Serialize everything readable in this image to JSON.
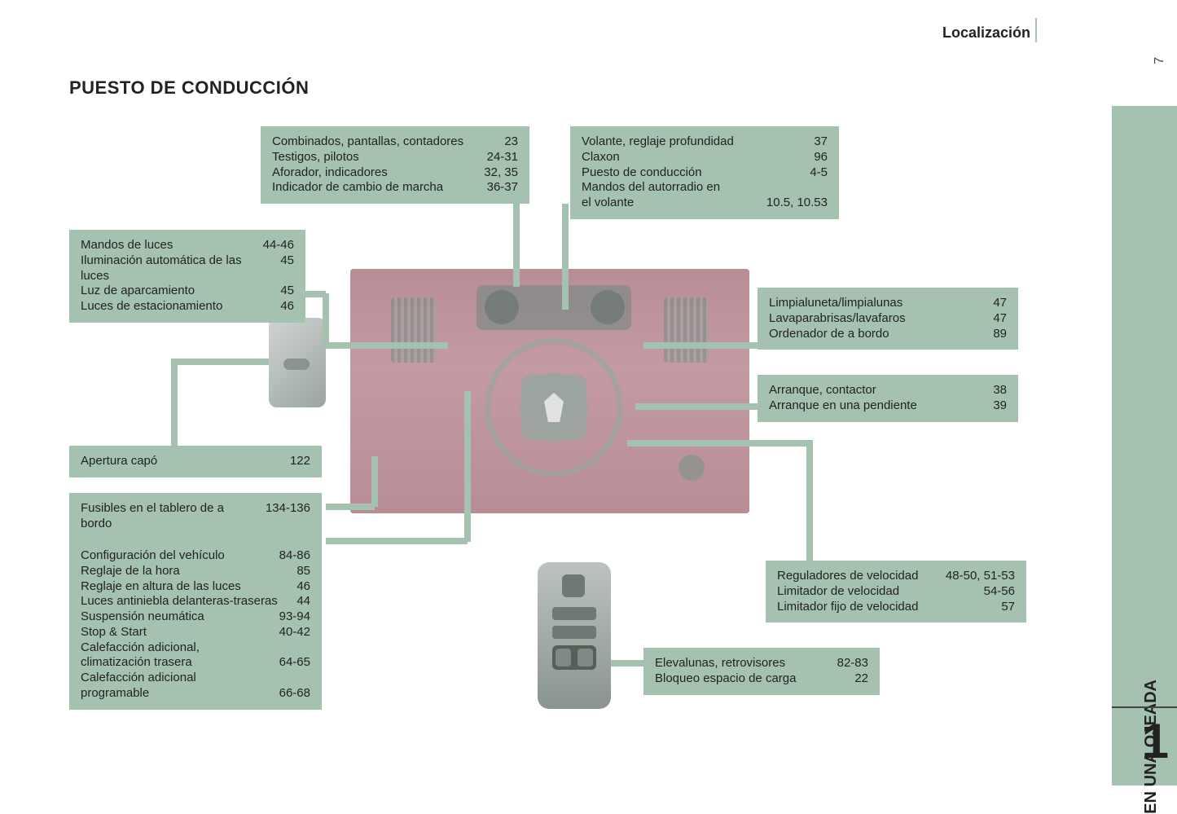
{
  "header": {
    "section": "Localización",
    "pageNumber": "7"
  },
  "sidebar": {
    "tab": "EN UNA OJEADA",
    "chapter": "1"
  },
  "title": "PUESTO DE CONDUCCIÓN",
  "colors": {
    "box": "#a5c2b0",
    "imgBg": "#c98a95",
    "text": "#222222"
  },
  "callouts": {
    "topLeft": {
      "rows": [
        {
          "label": "Combinados, pantallas, contadores",
          "pages": "23"
        },
        {
          "label": "Testigos, pilotos",
          "pages": "24-31"
        },
        {
          "label": "Aforador, indicadores",
          "pages": "32, 35"
        },
        {
          "label": "Indicador de cambio de marcha",
          "pages": "36-37"
        }
      ]
    },
    "topRight": {
      "rows": [
        {
          "label": "Volante, reglaje profundidad",
          "pages": "37"
        },
        {
          "label": "Claxon",
          "pages": "96"
        },
        {
          "label": "Puesto de conducción",
          "pages": "4-5"
        },
        {
          "label": "Mandos del autorradio en",
          "pages": ""
        },
        {
          "label": "el volante",
          "pages": "10.5, 10.53"
        }
      ]
    },
    "lights": {
      "rows": [
        {
          "label": "Mandos de luces",
          "pages": "44-46"
        },
        {
          "label": "Iluminación automática de las luces",
          "pages": "45"
        },
        {
          "label": "Luz de aparcamiento",
          "pages": "45"
        },
        {
          "label": "Luces de estacionamiento",
          "pages": "46"
        }
      ]
    },
    "wiper": {
      "rows": [
        {
          "label": "Limpialuneta/limpialunas",
          "pages": "47"
        },
        {
          "label": "Lavaparabrisas/lavafaros",
          "pages": "47"
        },
        {
          "label": "Ordenador de a bordo",
          "pages": "89"
        }
      ]
    },
    "ignition": {
      "rows": [
        {
          "label": "Arranque, contactor",
          "pages": "38"
        },
        {
          "label": "Arranque en una pendiente",
          "pages": "39"
        }
      ]
    },
    "hood": {
      "rows": [
        {
          "label": "Apertura capó",
          "pages": "122"
        }
      ]
    },
    "fuses": {
      "rows": [
        {
          "label": "Fusibles en el tablero de a bordo",
          "pages": "134-136"
        }
      ]
    },
    "config": {
      "rows": [
        {
          "label": "Configuración del vehículo",
          "pages": "84-86"
        },
        {
          "label": "Reglaje de la hora",
          "pages": "85"
        },
        {
          "label": "Reglaje en altura de las luces",
          "pages": "46"
        },
        {
          "label": "Luces antiniebla delanteras-traseras",
          "pages": "44"
        },
        {
          "label": "Suspensión neumática",
          "pages": "93-94"
        },
        {
          "label": "Stop & Start",
          "pages": "40-42"
        },
        {
          "label": "Calefacción adicional,",
          "pages": ""
        },
        {
          "label": "climatización trasera",
          "pages": "64-65"
        },
        {
          "label": "Calefacción adicional",
          "pages": ""
        },
        {
          "label": "programable",
          "pages": "66-68"
        }
      ]
    },
    "cruise": {
      "rows": [
        {
          "label": "Reguladores de velocidad",
          "pages": "48-50, 51-53"
        },
        {
          "label": "Limitador de velocidad",
          "pages": "54-56"
        },
        {
          "label": "Limitador fijo de velocidad",
          "pages": "57"
        }
      ]
    },
    "windows": {
      "rows": [
        {
          "label": "Elevalunas, retrovisores",
          "pages": "82-83"
        },
        {
          "label": "Bloqueo espacio de carga",
          "pages": "22"
        }
      ]
    }
  }
}
